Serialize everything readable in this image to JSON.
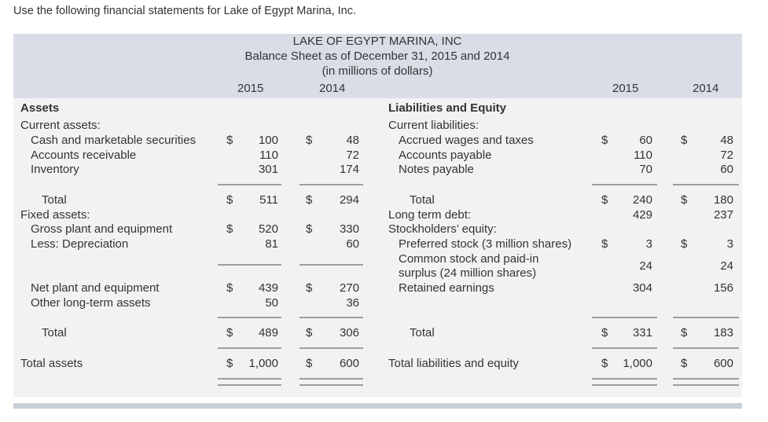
{
  "intro": "Use the following financial statements for Lake of Egypt Marina, Inc.",
  "header": {
    "company": "LAKE OF EGYPT MARINA, INC",
    "title": "Balance Sheet as of December 31, 2015 and 2014",
    "units": "(in millions of dollars)",
    "year1": "2015",
    "year2": "2014"
  },
  "assets": {
    "heading": "Assets",
    "current_heading": "Current assets:",
    "cash": {
      "label": "Cash and marketable securities",
      "v2015": "100",
      "v2014": "48"
    },
    "ar": {
      "label": "Accounts receivable",
      "v2015": "110",
      "v2014": "72"
    },
    "inv": {
      "label": "Inventory",
      "v2015": "301",
      "v2014": "174"
    },
    "total_current": {
      "label": "Total",
      "v2015": "511",
      "v2014": "294"
    },
    "fixed_heading": "Fixed assets:",
    "gross": {
      "label": "Gross plant and equipment",
      "v2015": "520",
      "v2014": "330"
    },
    "dep": {
      "label": "Less: Depreciation",
      "v2015": "81",
      "v2014": "60"
    },
    "net": {
      "label": "Net plant and equipment",
      "v2015": "439",
      "v2014": "270"
    },
    "other": {
      "label": "Other long-term assets",
      "v2015": "50",
      "v2014": "36"
    },
    "total_fixed": {
      "label": "Total",
      "v2015": "489",
      "v2014": "306"
    },
    "total_assets": {
      "label": "Total assets",
      "v2015": "1,000",
      "v2014": "600"
    }
  },
  "liabilities": {
    "heading": "Liabilities and Equity",
    "current_heading": "Current liabilities:",
    "accrued": {
      "label": "Accrued wages and taxes",
      "v2015": "60",
      "v2014": "48"
    },
    "ap": {
      "label": "Accounts payable",
      "v2015": "110",
      "v2014": "72"
    },
    "np": {
      "label": "Notes payable",
      "v2015": "70",
      "v2014": "60"
    },
    "total_current": {
      "label": "Total",
      "v2015": "240",
      "v2014": "180"
    },
    "ltd": {
      "label": "Long term debt:",
      "v2015": "429",
      "v2014": "237"
    },
    "se_heading": "Stockholders’ equity:",
    "pref": {
      "label": "Preferred stock (3 million shares)",
      "v2015": "3",
      "v2014": "3"
    },
    "common": {
      "label1": "Common stock and paid-in",
      "label2": "surplus (24 million shares)",
      "v2015": "24",
      "v2014": "24"
    },
    "re": {
      "label": "Retained earnings",
      "v2015": "304",
      "v2014": "156"
    },
    "total_equity": {
      "label": "Total",
      "v2015": "331",
      "v2014": "183"
    },
    "total_le": {
      "label": "Total liabilities and equity",
      "v2015": "1,000",
      "v2014": "600"
    }
  },
  "currency_symbol": "$"
}
